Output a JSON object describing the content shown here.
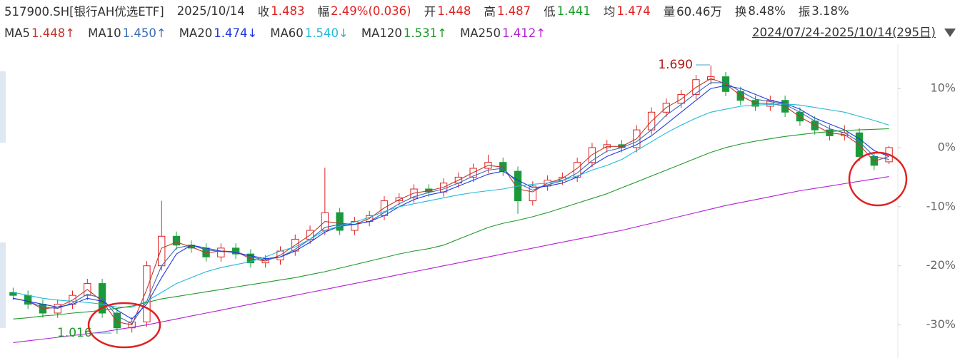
{
  "chart_data": {
    "type": "candlestick",
    "symbol": "517900.SH[银行AH优选ETF]",
    "date": "2025/10/14",
    "quotes": [
      {
        "label": "收",
        "value": "1.483",
        "color": "#e02020"
      },
      {
        "label": "幅",
        "value": "2.49%(0.036)",
        "color": "#e02020"
      },
      {
        "label": "开",
        "value": "1.448",
        "color": "#e02020"
      },
      {
        "label": "高",
        "value": "1.487",
        "color": "#e02020"
      },
      {
        "label": "低",
        "value": "1.441",
        "color": "#1a9a2a"
      },
      {
        "label": "均",
        "value": "1.474",
        "color": "#e02020"
      },
      {
        "label": "量",
        "value": "60.46万",
        "color": "#333333"
      },
      {
        "label": "换",
        "value": "8.48%",
        "color": "#333333"
      },
      {
        "label": "振",
        "value": "3.18%",
        "color": "#333333"
      }
    ],
    "range": "2024/07/24-2025/10/14(295日)",
    "up_color": "#e02020",
    "down_color": "#1a9a3a",
    "open": [
      -24.5,
      -25,
      -26.5,
      -28,
      -26.5,
      -25,
      -23,
      -28,
      -30.5,
      -29.5,
      -20,
      -15,
      -16.5,
      -17,
      -18.5,
      -17,
      -18,
      -19.5,
      -19,
      -17.5,
      -15.5,
      -14,
      -11,
      -14,
      -12.5,
      -11.5,
      -9,
      -8.5,
      -7,
      -7.5,
      -6,
      -5,
      -3.5,
      -2.5,
      -4,
      -9,
      -6.5,
      -5.5,
      -5,
      -2.5,
      0,
      0.5,
      0,
      3,
      6,
      7.5,
      9,
      11.5,
      12,
      9.5,
      8,
      7,
      8,
      6,
      4.5,
      3,
      2,
      2.5,
      -1.5,
      -2.4
    ],
    "high": [
      -23.7,
      -24.2,
      -25.7,
      -25.7,
      -24.2,
      -22.2,
      -22.2,
      -27.2,
      -28.7,
      -19.2,
      -9,
      -14.2,
      -15.7,
      -16.2,
      -16.2,
      -16.2,
      -17.2,
      -18.2,
      -16.7,
      -14.7,
      -13.2,
      -3.4,
      -10.2,
      -11.7,
      -10.7,
      -8.2,
      -7.7,
      -6.2,
      -6.2,
      -5.2,
      -4.2,
      -2.7,
      -1.2,
      -1.7,
      -3.2,
      -5.7,
      -4.7,
      -4.2,
      -1.7,
      0.8,
      1.3,
      1.3,
      3.8,
      6.8,
      8.3,
      9.8,
      12.3,
      13.9,
      12.8,
      10.3,
      8.8,
      8.8,
      8.8,
      6.8,
      5.3,
      3.8,
      3.8,
      3.3,
      -0.7,
      0.3
    ],
    "low": [
      -25.8,
      -27.3,
      -28.8,
      -28.8,
      -27.3,
      -25.8,
      -28.8,
      -31.5,
      -31.3,
      -30.3,
      -20.8,
      -17.3,
      -17.8,
      -19.3,
      -19.3,
      -18.8,
      -20.3,
      -20.3,
      -19.8,
      -18.3,
      -16.3,
      -14.8,
      -14.8,
      -14.8,
      -13.3,
      -12.3,
      -9.8,
      -9.3,
      -8.3,
      -8.3,
      -6.8,
      -5.8,
      -4.3,
      -4.8,
      -11.2,
      -9.8,
      -7.3,
      -6.3,
      -5.8,
      -3.3,
      -0.8,
      -0.8,
      -0.8,
      2.2,
      5.2,
      6.7,
      8.2,
      10.7,
      8.7,
      7.2,
      6.2,
      6.2,
      5.2,
      3.7,
      2.2,
      1.2,
      1.2,
      -2.3,
      -3.8,
      -2.8
    ],
    "close": [
      -25,
      -26.5,
      -28,
      -26.5,
      -25,
      -23,
      -28,
      -30.5,
      -29.5,
      -20,
      -15,
      -16.5,
      -17,
      -18.5,
      -17,
      -18,
      -19.5,
      -19,
      -17.5,
      -15.5,
      -14,
      -11,
      -14,
      -12.5,
      -11.5,
      -9,
      -8.5,
      -7,
      -7.5,
      -6,
      -5,
      -3.5,
      -2.5,
      -4,
      -9,
      -6.5,
      -5.5,
      -5,
      -2.5,
      0,
      0.5,
      0,
      3,
      6,
      7.5,
      9,
      11.5,
      12,
      9.5,
      8,
      7,
      8,
      6,
      4.5,
      3,
      2,
      2.5,
      -1.5,
      -3,
      0
    ],
    "series": [
      {
        "name": "MA5",
        "value_label": "1.448↑",
        "color": "#c0392b",
        "values": [
          -25.5,
          -26,
          -27.3,
          -27,
          -25.8,
          -24,
          -26,
          -29.5,
          -30,
          -24,
          -17,
          -16,
          -16.8,
          -17.8,
          -17.5,
          -17.6,
          -18.8,
          -19.2,
          -18.2,
          -16.5,
          -14.8,
          -12.5,
          -12.8,
          -13,
          -12,
          -10.2,
          -8.8,
          -7.7,
          -7.3,
          -6.7,
          -5.5,
          -4.2,
          -3,
          -3.3,
          -7,
          -7.5,
          -6,
          -5.2,
          -3.5,
          -1.2,
          0.2,
          0.2,
          1.5,
          4.5,
          6.8,
          8.2,
          10.2,
          11.7,
          10.8,
          8.8,
          7.5,
          7.5,
          7,
          5.2,
          3.8,
          2.5,
          2.2,
          0.5,
          -2.3,
          -1.5
        ]
      },
      {
        "name": "MA10",
        "value_label": "1.450↑",
        "color": "#3b6cb5",
        "values": [
          -25.5,
          -26,
          -27,
          -27.2,
          -26.3,
          -24.8,
          -25.5,
          -28.5,
          -29.8,
          -26,
          -20,
          -17,
          -16.5,
          -17.3,
          -17.6,
          -17.6,
          -18.5,
          -19,
          -18.5,
          -17.2,
          -15.5,
          -13.5,
          -13,
          -13,
          -12.5,
          -11,
          -9.5,
          -8.3,
          -7.6,
          -7,
          -6,
          -4.8,
          -3.8,
          -3.5,
          -6,
          -7.2,
          -6.3,
          -5.6,
          -4.3,
          -2.2,
          -0.6,
          0,
          1,
          3,
          5.5,
          7.3,
          9.2,
          11,
          11,
          9.5,
          8.2,
          7.8,
          7.3,
          6,
          4.5,
          3.2,
          2.5,
          1,
          -1.5,
          -2
        ]
      },
      {
        "name": "MA20",
        "value_label": "1.474↓",
        "color": "#1f3ae0",
        "values": [
          -25.5,
          -26,
          -26.5,
          -27,
          -26.5,
          -25.5,
          -26,
          -27.5,
          -29,
          -26.5,
          -22,
          -18,
          -16.5,
          -17,
          -17.5,
          -17.8,
          -18.3,
          -18.8,
          -18.5,
          -17.5,
          -16,
          -14.3,
          -13.3,
          -13,
          -12.5,
          -11.5,
          -10,
          -8.8,
          -8,
          -7.5,
          -6.5,
          -5.5,
          -4.5,
          -4,
          -5.5,
          -6.8,
          -6.5,
          -6,
          -5,
          -3,
          -1.5,
          -0.5,
          0.5,
          2,
          4,
          6,
          8,
          10,
          10.5,
          10,
          9,
          8,
          7.5,
          6.5,
          5,
          4,
          3,
          1.5,
          -0.5,
          -1.5
        ]
      },
      {
        "name": "MA60",
        "value_label": "1.540↓",
        "color": "#22b8d8",
        "values": [
          -24.5,
          -25,
          -25.5,
          -25.8,
          -26,
          -26.2,
          -26.5,
          -27,
          -27,
          -26,
          -24.5,
          -23,
          -22,
          -21,
          -20.3,
          -19.8,
          -19.3,
          -18.5,
          -17.5,
          -16.8,
          -15.5,
          -14,
          -13.3,
          -12.6,
          -11.8,
          -10.8,
          -10,
          -9.5,
          -9,
          -8.5,
          -8,
          -7.6,
          -7.3,
          -7,
          -6.5,
          -6.2,
          -6,
          -5.5,
          -4.8,
          -3.8,
          -3,
          -2,
          -0.5,
          1,
          2.5,
          3.8,
          5,
          6,
          6.5,
          7,
          7.2,
          7.3,
          7.4,
          7.2,
          6.8,
          6.4,
          6,
          5.3,
          4.6,
          3.8
        ]
      },
      {
        "name": "MA120",
        "value_label": "1.531↑",
        "color": "#1e9a2a",
        "values": [
          -29,
          -28.8,
          -28.5,
          -28.3,
          -28,
          -27.8,
          -27.5,
          -27.2,
          -26.8,
          -26.2,
          -25.6,
          -25.2,
          -24.8,
          -24.4,
          -24,
          -23.6,
          -23.2,
          -22.8,
          -22.4,
          -22,
          -21.5,
          -21,
          -20.4,
          -19.8,
          -19.2,
          -18.6,
          -18,
          -17.5,
          -17.1,
          -16.5,
          -15.5,
          -14.5,
          -13.5,
          -12.8,
          -12.3,
          -11.7,
          -11,
          -10.2,
          -9.4,
          -8.6,
          -7.8,
          -6.8,
          -5.8,
          -4.8,
          -3.8,
          -2.8,
          -1.8,
          -0.8,
          0,
          0.6,
          1.1,
          1.5,
          1.9,
          2.2,
          2.5,
          2.7,
          2.9,
          3,
          3.1,
          3.2
        ]
      },
      {
        "name": "MA250",
        "value_label": "1.412↑",
        "color": "#b41fd6",
        "values": [
          -33,
          -32.7,
          -32.4,
          -32.1,
          -31.8,
          -31.5,
          -31.2,
          -30.8,
          -30.4,
          -30,
          -29.5,
          -29,
          -28.5,
          -28,
          -27.5,
          -27,
          -26.5,
          -26,
          -25.5,
          -25,
          -24.5,
          -24,
          -23.5,
          -23,
          -22.5,
          -22,
          -21.5,
          -21,
          -20.5,
          -20,
          -19.5,
          -19,
          -18.5,
          -18,
          -17.5,
          -17,
          -16.5,
          -16,
          -15.5,
          -15,
          -14.5,
          -14,
          -13.4,
          -12.8,
          -12.2,
          -11.6,
          -11,
          -10.4,
          -9.8,
          -9.3,
          -8.8,
          -8.3,
          -7.8,
          -7.3,
          -6.9,
          -6.5,
          -6.1,
          -5.7,
          -5.3,
          -4.9
        ]
      }
    ],
    "annotations": [
      {
        "text": "1.690",
        "color": "#b01818"
      },
      {
        "text": "1.016",
        "color": "#1a9a2a"
      }
    ],
    "ylim": [
      -35,
      17.5
    ],
    "yticks": [
      {
        "value": 10,
        "label": "10%"
      },
      {
        "value": 0,
        "label": "0%"
      },
      {
        "value": -10,
        "label": "-10%"
      },
      {
        "value": -20,
        "label": "-20%"
      },
      {
        "value": -30,
        "label": "-30%"
      }
    ]
  }
}
